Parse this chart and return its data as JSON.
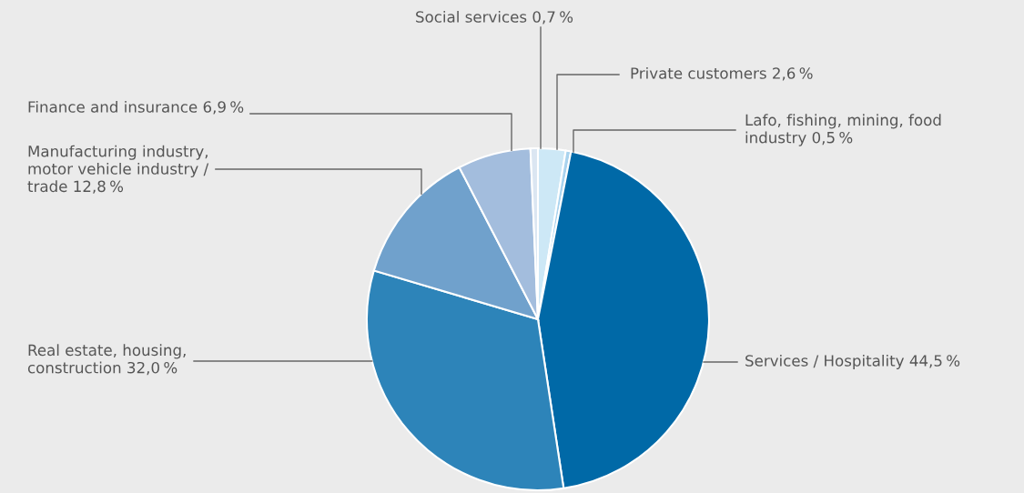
{
  "chart_data": {
    "type": "pie",
    "categories": [
      "Private customers",
      "Lafo, fishing, mining, food\nindustry",
      "Services / Hospitality",
      "Real estate, housing,\nconstruction",
      "Manufacturing industry,\nmotor vehicle industry /\ntrade",
      "Finance and insurance",
      "Social services"
    ],
    "values": [
      2.6,
      0.5,
      44.5,
      32.0,
      12.8,
      6.9,
      0.7
    ],
    "value_labels": [
      "2,6 %",
      "0,5 %",
      "44,5 %",
      "32,0 %",
      "12,8 %",
      "6,9 %",
      "0,7 %"
    ],
    "colors": [
      "#cde8f6",
      "#a9d3ee",
      "#0069a7",
      "#2d84b9",
      "#70a1cc",
      "#a3bddd",
      "#dbe6f2"
    ]
  }
}
